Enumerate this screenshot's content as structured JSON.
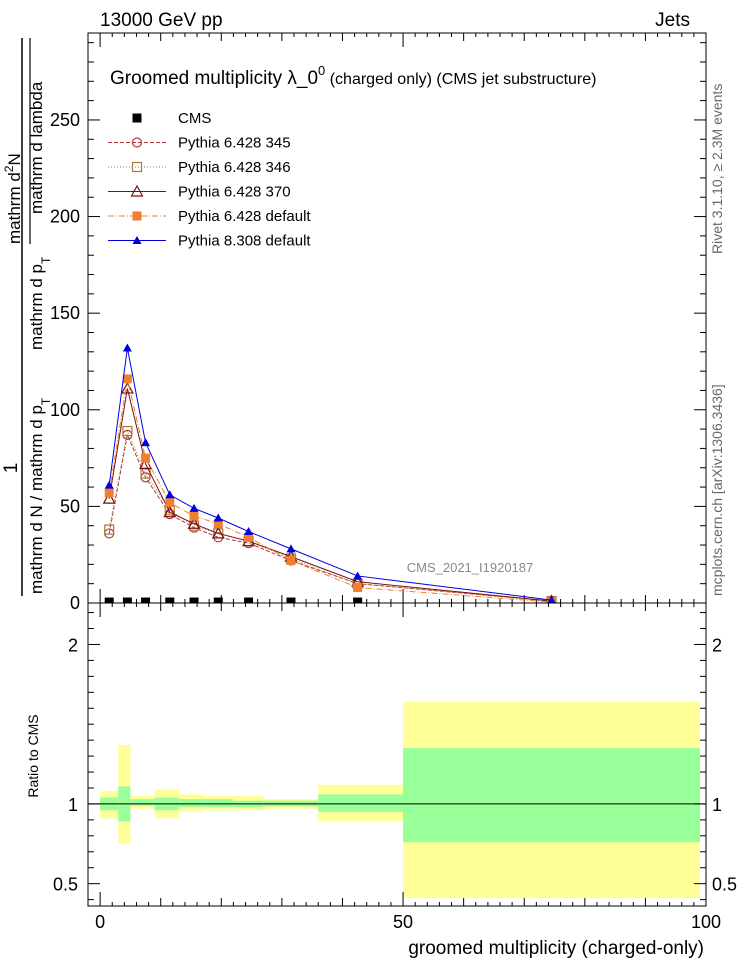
{
  "header": {
    "left": "13000 GeV pp",
    "right": "Jets"
  },
  "side_labels": {
    "rivet": "Rivet 3.1.10, ≥ 2.3M events",
    "mcplots": "mcplots.cern.ch [arXiv:1306.3436]"
  },
  "chart_data": [
    {
      "type": "line",
      "title": {
        "main": "Groomed multiplicity  λ_0",
        "sup": "0",
        "rest": " (charged only) (CMS jet substructure)"
      },
      "ylabel": {
        "numerator": "1",
        "den_left": "mathrm d N / mathrm d p",
        "den_sub": "T",
        "mid": "mathrm d p",
        "mid_sub": "T",
        "top_num": "mathrm d",
        "top_sup": "2",
        "top_N": "N",
        "top_den": "mathrm d lambda"
      },
      "watermark": "CMS_2021_I1920187",
      "xlim": [
        -2,
        100
      ],
      "ylim": [
        0,
        295
      ],
      "y_ticks": [
        0,
        50,
        100,
        150,
        200,
        250
      ],
      "y_tick_labels": [
        "0",
        "50",
        "100",
        "150",
        "200",
        "250"
      ],
      "x": [
        1.5,
        4.5,
        7.5,
        11.5,
        15.5,
        19.5,
        24.5,
        31.5,
        42.5,
        74.5
      ],
      "series": [
        {
          "name": "CMS",
          "color": "#000000",
          "marker": "square-filled",
          "dash": "none",
          "values": [
            0.5,
            0.5,
            0.5,
            0.5,
            0.5,
            0.5,
            0.5,
            0.5,
            0.5,
            0.5
          ]
        },
        {
          "name": "Pythia 6.428 345",
          "color": "#b03a3a",
          "marker": "circle-open",
          "dash": "4,2",
          "values": [
            36,
            87,
            65,
            46,
            39,
            34,
            31,
            22,
            10,
            1
          ]
        },
        {
          "name": "Pythia 6.428 346",
          "color": "#a87a3a",
          "marker": "square-open",
          "dash": "1,2",
          "values": [
            38,
            89,
            67,
            48,
            40,
            36,
            32,
            23,
            10,
            1
          ]
        },
        {
          "name": "Pythia 6.428 370",
          "color": "#7a1010",
          "marker": "triangle-open",
          "dash": "none",
          "values": [
            54,
            111,
            72,
            47,
            41,
            36,
            32,
            24,
            11,
            1
          ]
        },
        {
          "name": "Pythia 6.428 default",
          "color": "#f08030",
          "marker": "square-filled",
          "dash": "6,2,1,2",
          "values": [
            57,
            116,
            75,
            52,
            45,
            41,
            34,
            22,
            8,
            0.5
          ]
        },
        {
          "name": "Pythia 8.308 default",
          "color": "#0000dd",
          "marker": "triangle-filled",
          "dash": "none",
          "values": [
            61,
            132,
            83,
            56,
            49,
            44,
            37,
            28,
            14,
            1.5
          ]
        }
      ]
    },
    {
      "type": "area",
      "ylabel": "Ratio to CMS",
      "xlabel": "groomed multiplicity (charged-only)",
      "xlim": [
        -2,
        100
      ],
      "ylim": [
        0.36,
        2.26
      ],
      "x_ticks": [
        0,
        50,
        100
      ],
      "x_tick_labels": [
        "0",
        "50",
        "100"
      ],
      "y_ticks": [
        0.5,
        1,
        2
      ],
      "y_tick_labels": [
        "0.5",
        "1",
        "2"
      ],
      "bins": [
        {
          "lo": 0,
          "hi": 3,
          "yellow": [
            0.91,
            1.08
          ],
          "green": [
            0.96,
            1.04
          ]
        },
        {
          "lo": 3,
          "hi": 5,
          "yellow": [
            0.75,
            1.37
          ],
          "green": [
            0.89,
            1.11
          ]
        },
        {
          "lo": 5,
          "hi": 9,
          "yellow": [
            0.97,
            1.05
          ],
          "green": [
            0.99,
            1.03
          ]
        },
        {
          "lo": 9,
          "hi": 13,
          "yellow": [
            0.91,
            1.09
          ],
          "green": [
            0.96,
            1.04
          ]
        },
        {
          "lo": 13,
          "hi": 17,
          "yellow": [
            0.95,
            1.06
          ],
          "green": [
            0.98,
            1.03
          ]
        },
        {
          "lo": 17,
          "hi": 22,
          "yellow": [
            0.96,
            1.05
          ],
          "green": [
            0.98,
            1.03
          ]
        },
        {
          "lo": 22,
          "hi": 27,
          "yellow": [
            0.96,
            1.05
          ],
          "green": [
            0.98,
            1.02
          ]
        },
        {
          "lo": 27,
          "hi": 36,
          "yellow": [
            0.97,
            1.03
          ],
          "green": [
            0.985,
            1.02
          ]
        },
        {
          "lo": 36,
          "hi": 50,
          "yellow": [
            0.89,
            1.12
          ],
          "green": [
            0.95,
            1.06
          ]
        },
        {
          "lo": 50,
          "hi": 99,
          "yellow": [
            0.41,
            1.64
          ],
          "green": [
            0.76,
            1.35
          ]
        }
      ],
      "reference_line": 1
    }
  ]
}
